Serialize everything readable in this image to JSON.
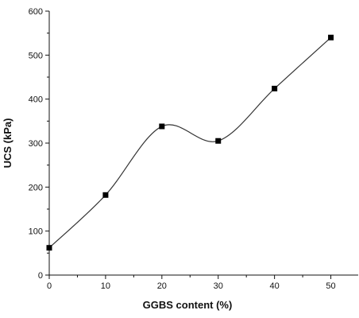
{
  "chart_data": {
    "type": "line",
    "xlabel": "GGBS content (%)",
    "ylabel": "UCS (kPa)",
    "xlim": [
      0,
      55
    ],
    "ylim": [
      0,
      600
    ],
    "xticks": [
      0,
      10,
      20,
      30,
      40,
      50
    ],
    "yticks": [
      0,
      100,
      200,
      300,
      400,
      500,
      600
    ],
    "x_minor_step": 5,
    "y_minor_step": 50,
    "grid": false,
    "legend": "none",
    "series": [
      {
        "x": [
          0,
          10,
          20,
          30,
          40,
          50
        ],
        "values": [
          62,
          182,
          338,
          305,
          424,
          540
        ],
        "line": "smooth",
        "marker": "square"
      }
    ],
    "colors": {
      "axis": "#111111",
      "line": "#333333",
      "marker": "#000000"
    }
  }
}
